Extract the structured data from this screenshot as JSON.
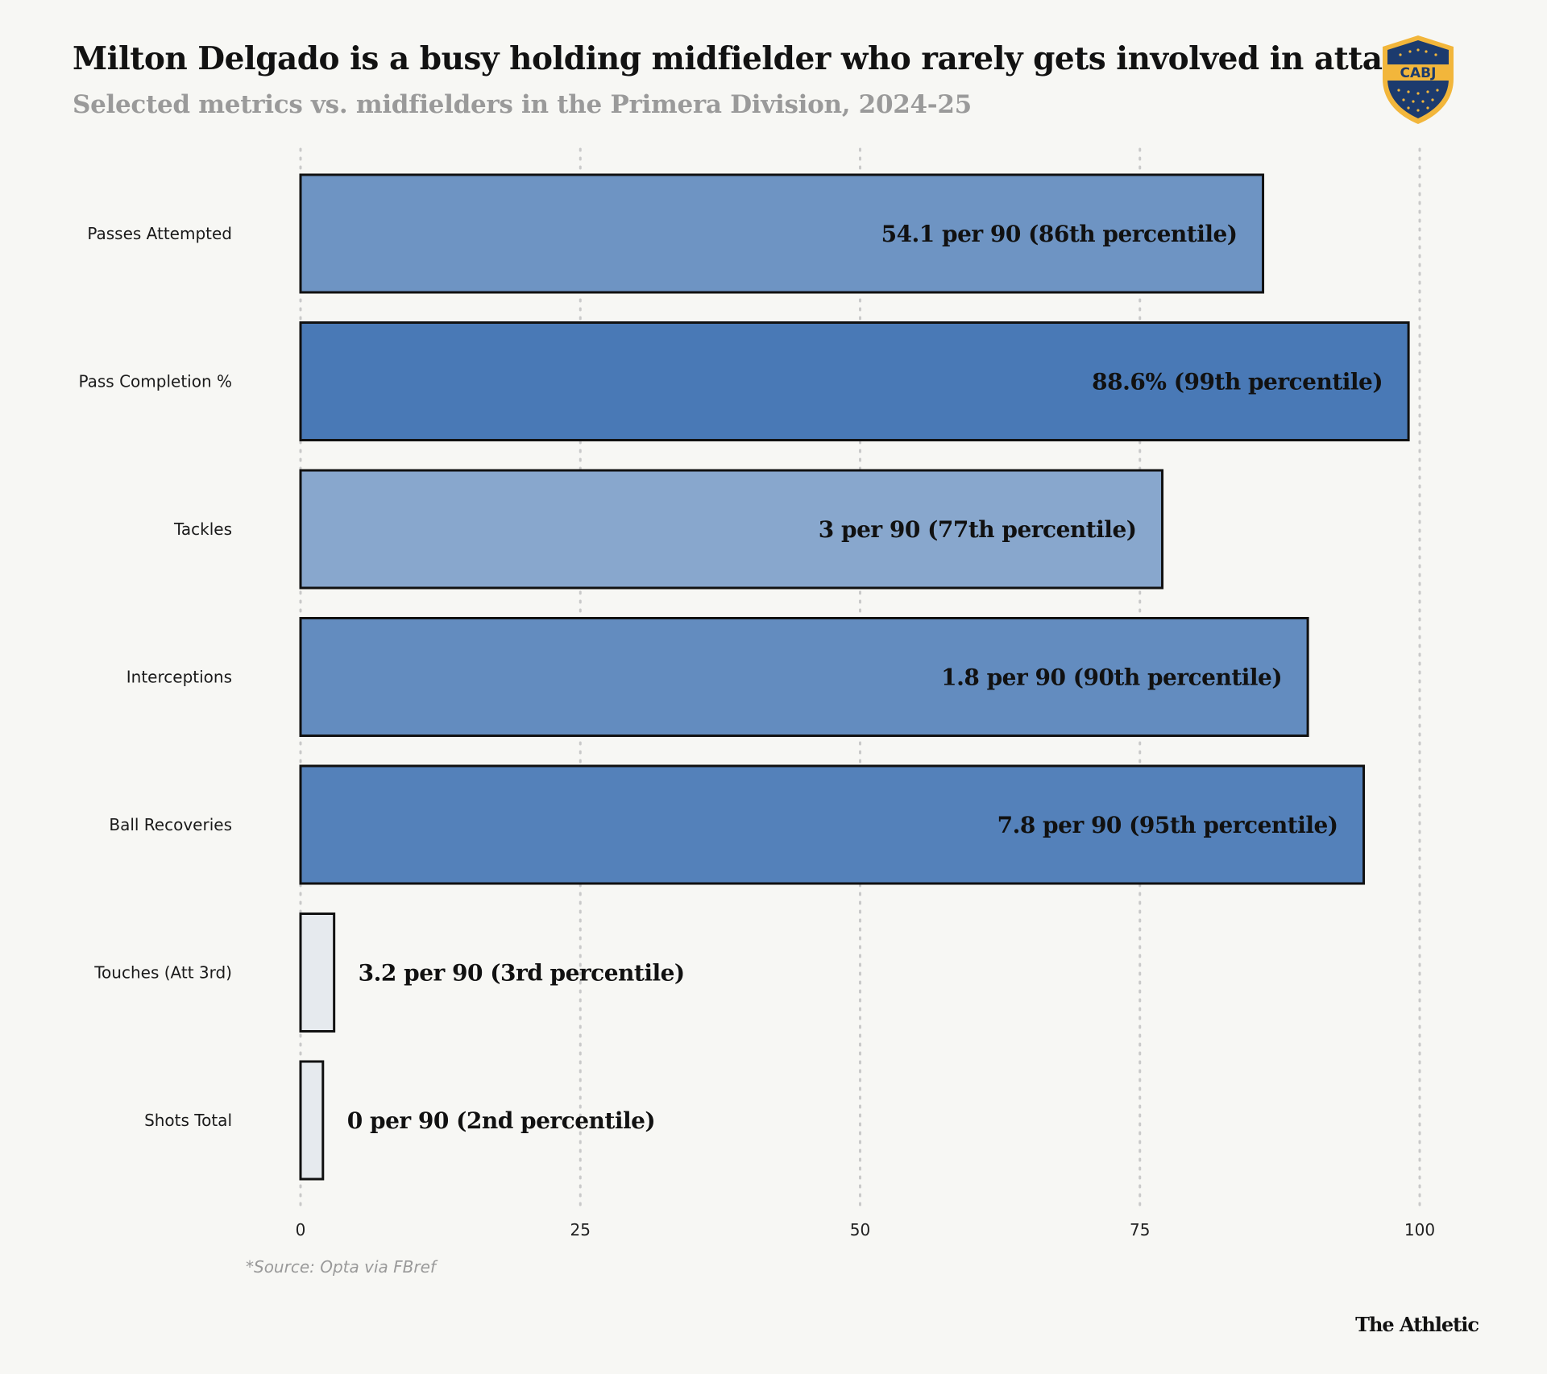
{
  "title": "Milton Delgado is a busy holding midfielder who rarely gets involved in attack",
  "subtitle": "Selected metrics vs. midfielders in the Primera Division, 2024-25",
  "logo_text": "CABJ",
  "source": "*Source: Opta via FBref",
  "brand": "The Athletic",
  "colors": {
    "background": "#f7f7f4",
    "bar_low": "#e6eaee",
    "bar_high": "#4677b5",
    "grid": "#c9c9c9",
    "logo_navy": "#1c3b6e",
    "logo_gold": "#f2b63b"
  },
  "chart_data": {
    "type": "bar",
    "orientation": "horizontal",
    "categories": [
      "Passes Attempted",
      "Pass Completion %",
      "Tackles",
      "Interceptions",
      "Ball Recoveries",
      "Touches (Att 3rd)",
      "Shots Total"
    ],
    "values": [
      86,
      99,
      77,
      90,
      95,
      3,
      2
    ],
    "data_labels": [
      "54.1 per 90 (86th percentile)",
      "88.6% (99th percentile)",
      "3 per 90 (77th percentile)",
      "1.8 per 90 (90th percentile)",
      "7.8 per 90 (95th percentile)",
      "3.2 per 90 (3rd percentile)",
      "0 per 90 (2nd percentile)"
    ],
    "xlim": [
      0,
      100
    ],
    "xticks": [
      0,
      25,
      50,
      75,
      100
    ],
    "xtick_labels": [
      "0",
      "25",
      "50",
      "75",
      "100"
    ],
    "grid": "vertical dotted",
    "xlabel": "",
    "ylabel": ""
  }
}
